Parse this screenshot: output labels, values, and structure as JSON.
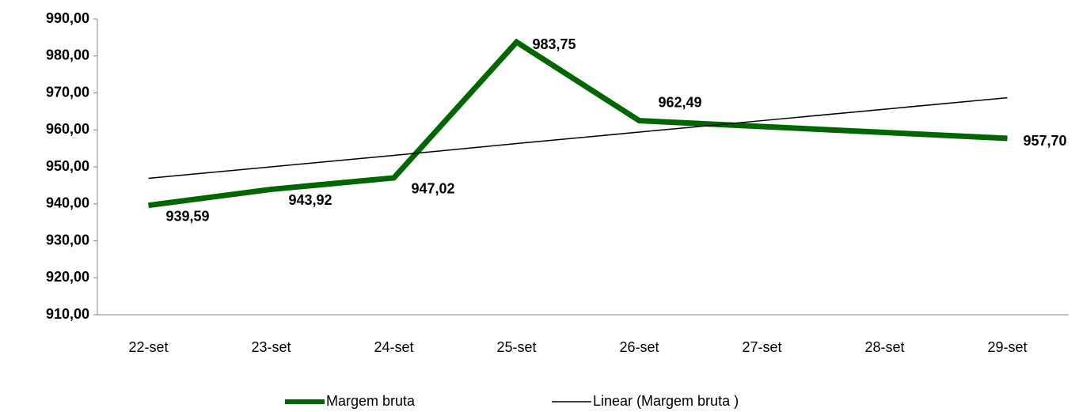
{
  "chart_data": {
    "type": "line",
    "categories": [
      "22-set",
      "23-set",
      "24-set",
      "25-set",
      "26-set",
      "27-set",
      "28-set",
      "29-set"
    ],
    "series": [
      {
        "name": "Margem bruta",
        "color": "#006600",
        "values": [
          939.59,
          943.92,
          947.02,
          983.75,
          962.49,
          960.9,
          959.3,
          957.7
        ],
        "value_labels": [
          "939,59",
          "943,92",
          "947,02",
          "983,75",
          "962,49",
          null,
          null,
          "957,70"
        ]
      },
      {
        "name": "Linear (Margem bruta )",
        "color": "#000000",
        "values": [
          946.9,
          950.0,
          953.1,
          956.3,
          959.4,
          962.5,
          965.6,
          968.7
        ]
      }
    ],
    "ylim": [
      910,
      990
    ],
    "yticks": [
      {
        "value": 910,
        "label": "910,00"
      },
      {
        "value": 920,
        "label": "920,00"
      },
      {
        "value": 930,
        "label": "930,00"
      },
      {
        "value": 940,
        "label": "940,00"
      },
      {
        "value": 950,
        "label": "950,00"
      },
      {
        "value": 960,
        "label": "960,00"
      },
      {
        "value": 970,
        "label": "970,00"
      },
      {
        "value": 980,
        "label": "980,00"
      },
      {
        "value": 990,
        "label": "990,00"
      }
    ],
    "legend": "bottom"
  }
}
